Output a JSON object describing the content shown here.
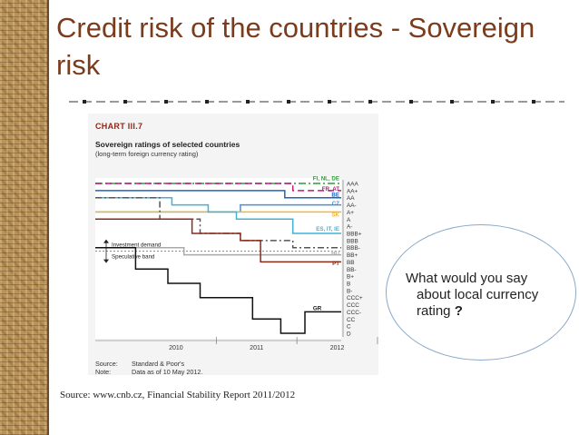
{
  "slide": {
    "title": "Credit risk of the countries - Sovereign risk",
    "source_caption": "Source: www.cnb.cz, Financial Stability Report 2011/2012"
  },
  "callout": {
    "line1": "What would you say",
    "line2": "about local currency",
    "line3_prefix": "rating ",
    "line3_mark": "?"
  },
  "colors": {
    "title": "#7a3c1c",
    "callout_border": "#8aa8c8",
    "chart_label": "#8a2b1a"
  },
  "chart_data": {
    "type": "line",
    "chart_number": "CHART III.7",
    "title": "Sovereign ratings of selected countries",
    "subtitle": "(long-term foreign currency rating)",
    "source_label": "Source:",
    "source_value": "Standard & Poor's",
    "note_label": "Note:",
    "note_value": "Data as of 10 May 2012.",
    "x_ticks": [
      "2010",
      "2011",
      "2012"
    ],
    "x_range": [
      2009.5,
      2012.55
    ],
    "y_ticks": [
      "AAA",
      "AA+",
      "AA",
      "AA-",
      "A+",
      "A",
      "A-",
      "BBB+",
      "BBB",
      "BBB-",
      "BB+",
      "BB",
      "BB-",
      "B+",
      "B",
      "B-",
      "CCC+",
      "CCC",
      "CCC-",
      "CC",
      "C",
      "D"
    ],
    "band_labels": [
      "Investment demand",
      "Speculative band"
    ],
    "series": [
      {
        "name": "FI, NL, DE",
        "color": "#2e9a3a",
        "dash": "8,3,2,3",
        "points": [
          [
            2009.5,
            0
          ],
          [
            2012.55,
            0
          ]
        ]
      },
      {
        "name": "FR, AT",
        "color": "#c0177a",
        "dash": "7,4",
        "points": [
          [
            2009.5,
            0
          ],
          [
            2011.95,
            0
          ],
          [
            2011.95,
            1
          ],
          [
            2012.55,
            1
          ]
        ]
      },
      {
        "name": "BE",
        "color": "#1f63c2",
        "dash": "",
        "points": [
          [
            2009.5,
            1
          ],
          [
            2011.85,
            1
          ],
          [
            2011.85,
            2
          ],
          [
            2012.55,
            2
          ]
        ]
      },
      {
        "name": "CZ",
        "color": "#4a90d9",
        "dash": "",
        "points": [
          [
            2009.5,
            4
          ],
          [
            2011.3,
            4
          ],
          [
            2011.3,
            3
          ],
          [
            2012.55,
            3
          ]
        ]
      },
      {
        "name": "SK",
        "color": "#f2b630",
        "dash": "",
        "points": [
          [
            2009.5,
            4
          ],
          [
            2012.55,
            4
          ]
        ]
      },
      {
        "name": "ES, IT, IE",
        "color": "#3fb3d8",
        "dash": "",
        "points": [
          [
            2009.5,
            2
          ],
          [
            2010.45,
            2
          ],
          [
            2010.45,
            3
          ],
          [
            2010.9,
            3
          ],
          [
            2010.9,
            4
          ],
          [
            2011.25,
            4
          ],
          [
            2011.25,
            5
          ],
          [
            2011.95,
            5
          ],
          [
            2011.95,
            7
          ],
          [
            2012.55,
            7
          ]
        ]
      },
      {
        "name": "IE",
        "color": "#555555",
        "dash": "7,3,2,3",
        "points": [
          [
            2009.5,
            2
          ],
          [
            2010.3,
            2
          ],
          [
            2010.3,
            5
          ],
          [
            2010.8,
            5
          ],
          [
            2010.8,
            7
          ],
          [
            2011.3,
            7
          ],
          [
            2011.3,
            8
          ],
          [
            2011.95,
            8
          ],
          [
            2011.95,
            9
          ],
          [
            2012.55,
            9
          ]
        ]
      },
      {
        "name": "HU",
        "color": "#aaaaaa",
        "dash": "",
        "points": [
          [
            2009.5,
            9
          ],
          [
            2010.6,
            9
          ],
          [
            2010.6,
            10
          ],
          [
            2012.55,
            10
          ]
        ]
      },
      {
        "name": "PT",
        "color": "#8a2b1a",
        "dash": "",
        "points": [
          [
            2009.5,
            5
          ],
          [
            2010.7,
            5
          ],
          [
            2010.7,
            7
          ],
          [
            2011.3,
            7
          ],
          [
            2011.3,
            8
          ],
          [
            2011.55,
            8
          ],
          [
            2011.55,
            11
          ],
          [
            2012.55,
            11
          ]
        ]
      },
      {
        "name": "GR",
        "color": "#111111",
        "dash": "",
        "points": [
          [
            2009.5,
            9
          ],
          [
            2010.0,
            9
          ],
          [
            2010.0,
            12
          ],
          [
            2010.4,
            12
          ],
          [
            2010.4,
            14
          ],
          [
            2010.8,
            14
          ],
          [
            2010.8,
            16
          ],
          [
            2011.45,
            16
          ],
          [
            2011.45,
            19
          ],
          [
            2011.8,
            19
          ],
          [
            2011.8,
            21
          ],
          [
            2012.1,
            21
          ],
          [
            2012.1,
            18
          ],
          [
            2012.55,
            18
          ]
        ]
      }
    ],
    "grid": false,
    "legend": "inline-right"
  }
}
